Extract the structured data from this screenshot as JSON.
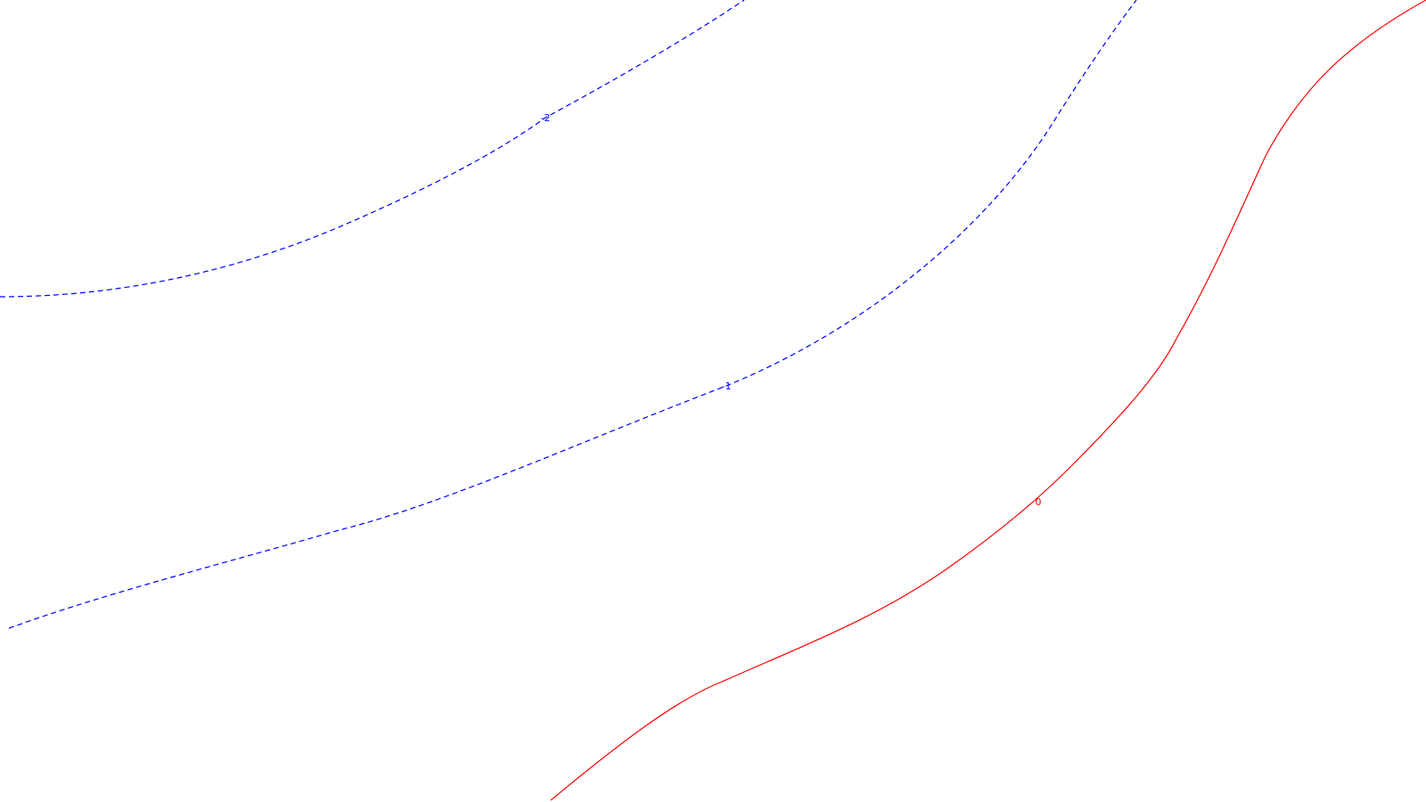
{
  "chart_data": {
    "type": "contour",
    "title": "",
    "xlabel": "",
    "ylabel": "",
    "grid": false,
    "levels": [
      {
        "level": "-2",
        "label": "-2",
        "color": "#0000ff",
        "dashed": true
      },
      {
        "level": "-1",
        "label": "-1",
        "color": "#0000ff",
        "dashed": true
      },
      {
        "level": "0",
        "label": "0",
        "color": "#ff0000",
        "dashed": false
      }
    ]
  }
}
